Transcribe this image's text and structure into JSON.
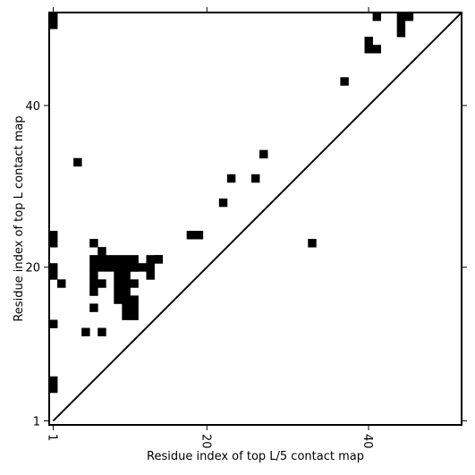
{
  "chart_data": {
    "type": "heatmap",
    "xlabel": "Residue index of top L/5 contact map",
    "ylabel": "Residue index of top L contact map",
    "xlim": [
      1,
      51
    ],
    "ylim": [
      1,
      51
    ],
    "ticks": [
      1,
      20,
      40
    ],
    "x_tick_labels": [
      "1",
      "20",
      "40"
    ],
    "y_tick_labels": [
      "1",
      "20",
      "40"
    ],
    "diagonal": true,
    "grid": false,
    "colors": {
      "contact": "#000000",
      "background": "#ffffff",
      "frame": "#000000"
    },
    "lower_triangle_contacts": [
      [
        14,
        10
      ],
      [
        14,
        11
      ],
      [
        15,
        10
      ],
      [
        15,
        11
      ],
      [
        16,
        10
      ],
      [
        16,
        11
      ],
      [
        12,
        7
      ],
      [
        20,
        7
      ],
      [
        20,
        8
      ],
      [
        21,
        7
      ],
      [
        21,
        8
      ],
      [
        22,
        7
      ],
      [
        20,
        11
      ],
      [
        21,
        14
      ],
      [
        23,
        33
      ]
    ],
    "upper_triangle_contacts": [
      [
        1,
        5
      ],
      [
        1,
        6
      ],
      [
        2,
        18
      ],
      [
        5,
        12
      ],
      [
        6,
        15
      ],
      [
        1,
        13
      ],
      [
        1,
        19
      ],
      [
        1,
        20
      ],
      [
        1,
        23
      ],
      [
        1,
        24
      ],
      [
        1,
        50
      ],
      [
        1,
        51
      ],
      [
        4,
        33
      ],
      [
        6,
        20
      ],
      [
        6,
        21
      ],
      [
        6,
        23
      ],
      [
        6,
        17
      ],
      [
        6,
        18
      ],
      [
        6,
        19
      ],
      [
        7,
        18
      ],
      [
        9,
        16
      ],
      [
        9,
        17
      ],
      [
        9,
        18
      ],
      [
        9,
        19
      ],
      [
        9,
        20
      ],
      [
        9,
        21
      ],
      [
        10,
        17
      ],
      [
        10,
        18
      ],
      [
        10,
        19
      ],
      [
        10,
        20
      ],
      [
        10,
        21
      ],
      [
        11,
        18
      ],
      [
        11,
        20
      ],
      [
        11,
        21
      ],
      [
        12,
        20
      ],
      [
        13,
        19
      ],
      [
        13,
        20
      ],
      [
        13,
        21
      ],
      [
        14,
        21
      ],
      [
        18,
        24
      ],
      [
        19,
        24
      ],
      [
        22,
        28
      ],
      [
        23,
        31
      ],
      [
        26,
        31
      ],
      [
        27,
        34
      ],
      [
        37,
        43
      ],
      [
        40,
        47
      ],
      [
        40,
        48
      ],
      [
        41,
        47
      ],
      [
        41,
        51
      ],
      [
        44,
        49
      ],
      [
        44,
        50
      ],
      [
        44,
        51
      ],
      [
        45,
        51
      ]
    ]
  }
}
